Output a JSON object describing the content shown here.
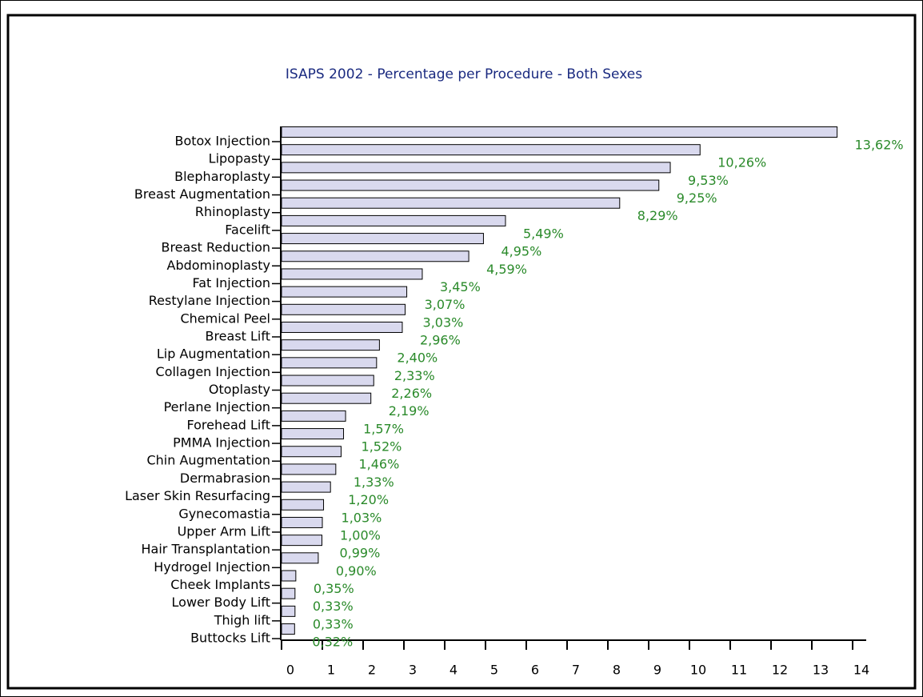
{
  "chart_data": {
    "type": "bar",
    "orientation": "horizontal",
    "title": "ISAPS 2002 - Percentage per Procedure - Both Sexes",
    "categories": [
      "Botox Injection",
      "Lipopasty",
      "Blepharoplasty",
      "Breast Augmentation",
      "Rhinoplasty",
      "Facelift",
      "Breast Reduction",
      "Abdominoplasty",
      "Fat Injection",
      "Restylane Injection",
      "Chemical Peel",
      "Breast Lift",
      "Lip Augmentation",
      "Collagen Injection",
      "Otoplasty",
      "Perlane Injection",
      "Forehead Lift",
      "PMMA Injection",
      "Chin Augmentation",
      "Dermabrasion",
      "Laser Skin Resurfacing",
      "Gynecomastia",
      "Upper Arm Lift",
      "Hair Transplantation",
      "Hydrogel Injection",
      "Cheek Implants",
      "Lower Body Lift",
      "Thigh lift",
      "Buttocks Lift"
    ],
    "values": [
      13.62,
      10.26,
      9.53,
      9.25,
      8.29,
      5.49,
      4.95,
      4.59,
      3.45,
      3.07,
      3.03,
      2.96,
      2.4,
      2.33,
      2.26,
      2.19,
      1.57,
      1.52,
      1.46,
      1.33,
      1.2,
      1.03,
      1.0,
      0.99,
      0.9,
      0.35,
      0.33,
      0.33,
      0.32
    ],
    "value_labels": [
      "13,62%",
      "10,26%",
      "9,53%",
      "9,25%",
      "8,29%",
      "5,49%",
      "4,95%",
      "4,59%",
      "3,45%",
      "3,07%",
      "3,03%",
      "2,96%",
      "2,40%",
      "2,33%",
      "2,26%",
      "2,19%",
      "1,57%",
      "1,52%",
      "1,46%",
      "1,33%",
      "1,20%",
      "1,03%",
      "1,00%",
      "0,99%",
      "0,90%",
      "0,35%",
      "0,33%",
      "0,33%",
      "0,32%"
    ],
    "color": "#d9d9ee",
    "label_color": "#2a8a2a",
    "xlim": [
      0,
      14
    ],
    "xticks": [
      0,
      1,
      2,
      3,
      4,
      5,
      6,
      7,
      8,
      9,
      10,
      11,
      12,
      13,
      14
    ],
    "grid": false
  }
}
